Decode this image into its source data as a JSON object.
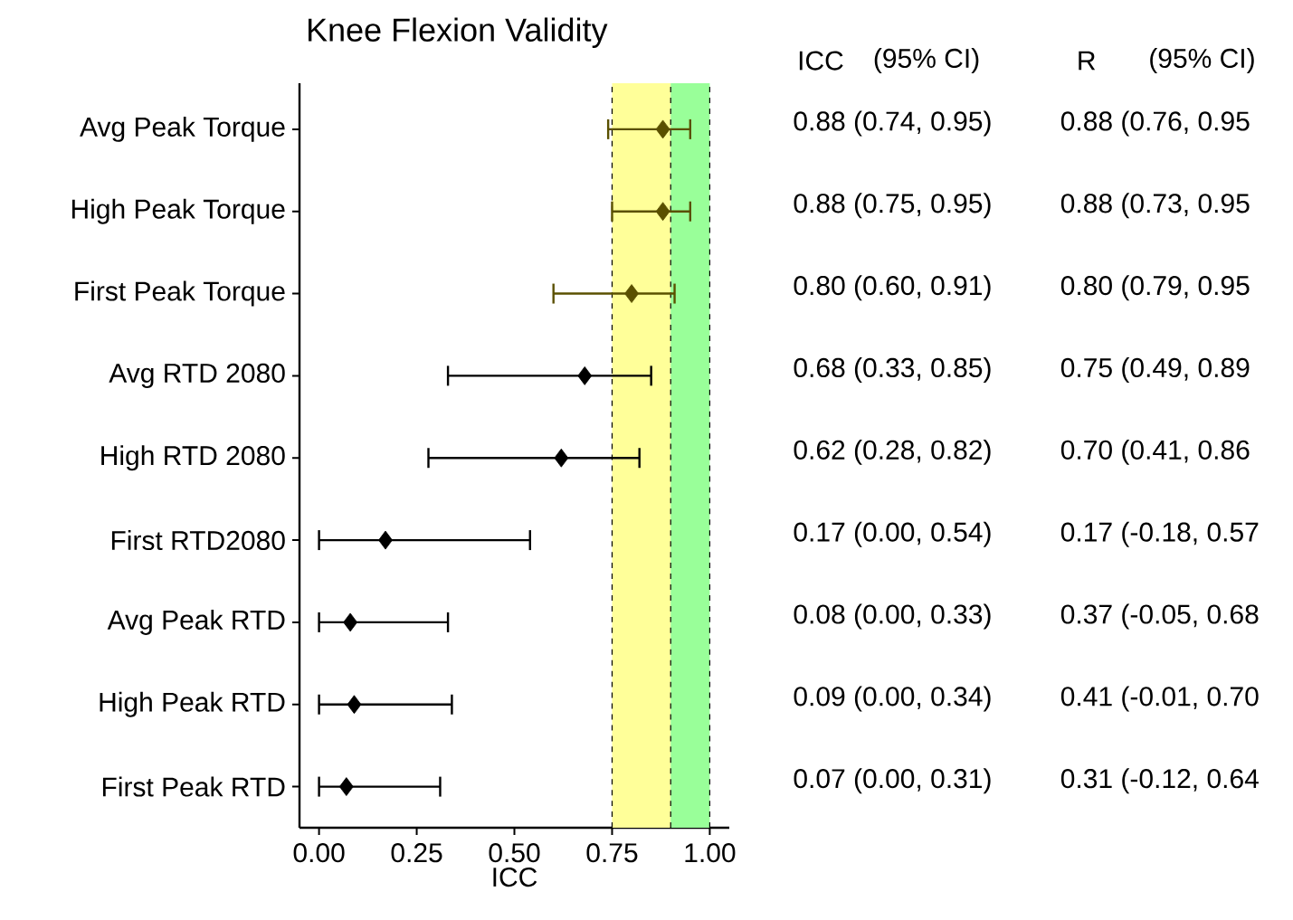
{
  "chart_data": {
    "type": "scatter",
    "orientation": "horizontal",
    "title": "Knee Flexion Validity",
    "xlabel": "ICC",
    "categories": [
      "Avg Peak Torque",
      "High Peak Torque",
      "First Peak Torque",
      "Avg RTD 2080",
      "High RTD 2080",
      "First RTD2080",
      "Avg Peak RTD",
      "High Peak RTD",
      "First Peak RTD"
    ],
    "values": [
      0.88,
      0.88,
      0.8,
      0.68,
      0.62,
      0.17,
      0.08,
      0.09,
      0.07
    ],
    "errors": [
      [
        0.74,
        0.95
      ],
      [
        0.75,
        0.95
      ],
      [
        0.6,
        0.91
      ],
      [
        0.33,
        0.85
      ],
      [
        0.28,
        0.82
      ],
      [
        0.0,
        0.54
      ],
      [
        0.0,
        0.33
      ],
      [
        0.0,
        0.34
      ],
      [
        0.0,
        0.31
      ]
    ],
    "colors": [
      "#5a5000",
      "#5a5000",
      "#5a5000",
      "#000000",
      "#000000",
      "#000000",
      "#000000",
      "#000000",
      "#000000"
    ],
    "marker": "diamond",
    "xlim": [
      -0.05,
      1.05
    ],
    "xticks": [
      {
        "value": 0,
        "label": "0.00"
      },
      {
        "value": 0.25,
        "label": "0.25"
      },
      {
        "value": 0.5,
        "label": "0.50"
      },
      {
        "value": 0.75,
        "label": "0.75"
      },
      {
        "value": 1,
        "label": "1.00"
      }
    ],
    "bands": [
      {
        "axis": "x",
        "from": 0.75,
        "to": 0.9,
        "color": "#ffff99"
      },
      {
        "axis": "x",
        "from": 0.9,
        "to": 1.0,
        "color": "#99ff99"
      }
    ],
    "ref_lines": [
      {
        "axis": "x",
        "value": 0.75,
        "line_style": "dashed",
        "color": "#000000"
      },
      {
        "axis": "x",
        "value": 0.9,
        "line_style": "dashed",
        "color": "#000000"
      },
      {
        "axis": "x",
        "value": 1.0,
        "line_style": "dashed",
        "color": "#000000"
      }
    ],
    "annotations": [
      "ICC",
      "(95% CI)",
      "R",
      "(95% CI)",
      "0.88 (0.74, 0.95)",
      "0.88  (0.76, 0.95",
      "0.88 (0.75, 0.95)",
      "0.88  (0.73, 0.95",
      "0.80 (0.60, 0.91)",
      "0.80  (0.79, 0.95",
      "0.68 (0.33, 0.85)",
      "0.75  (0.49, 0.89",
      "0.62 (0.28, 0.82)",
      "0.70  (0.41, 0.86",
      "0.17 (0.00, 0.54)",
      "0.17 (-0.18, 0.57",
      "0.08 (0.00, 0.33)",
      "0.37 (-0.05, 0.68",
      "0.09 (0.00, 0.34)",
      "0.41 (-0.01, 0.70",
      "0.07 (0.00, 0.31)",
      "0.31 (-0.12, 0.64"
    ]
  }
}
